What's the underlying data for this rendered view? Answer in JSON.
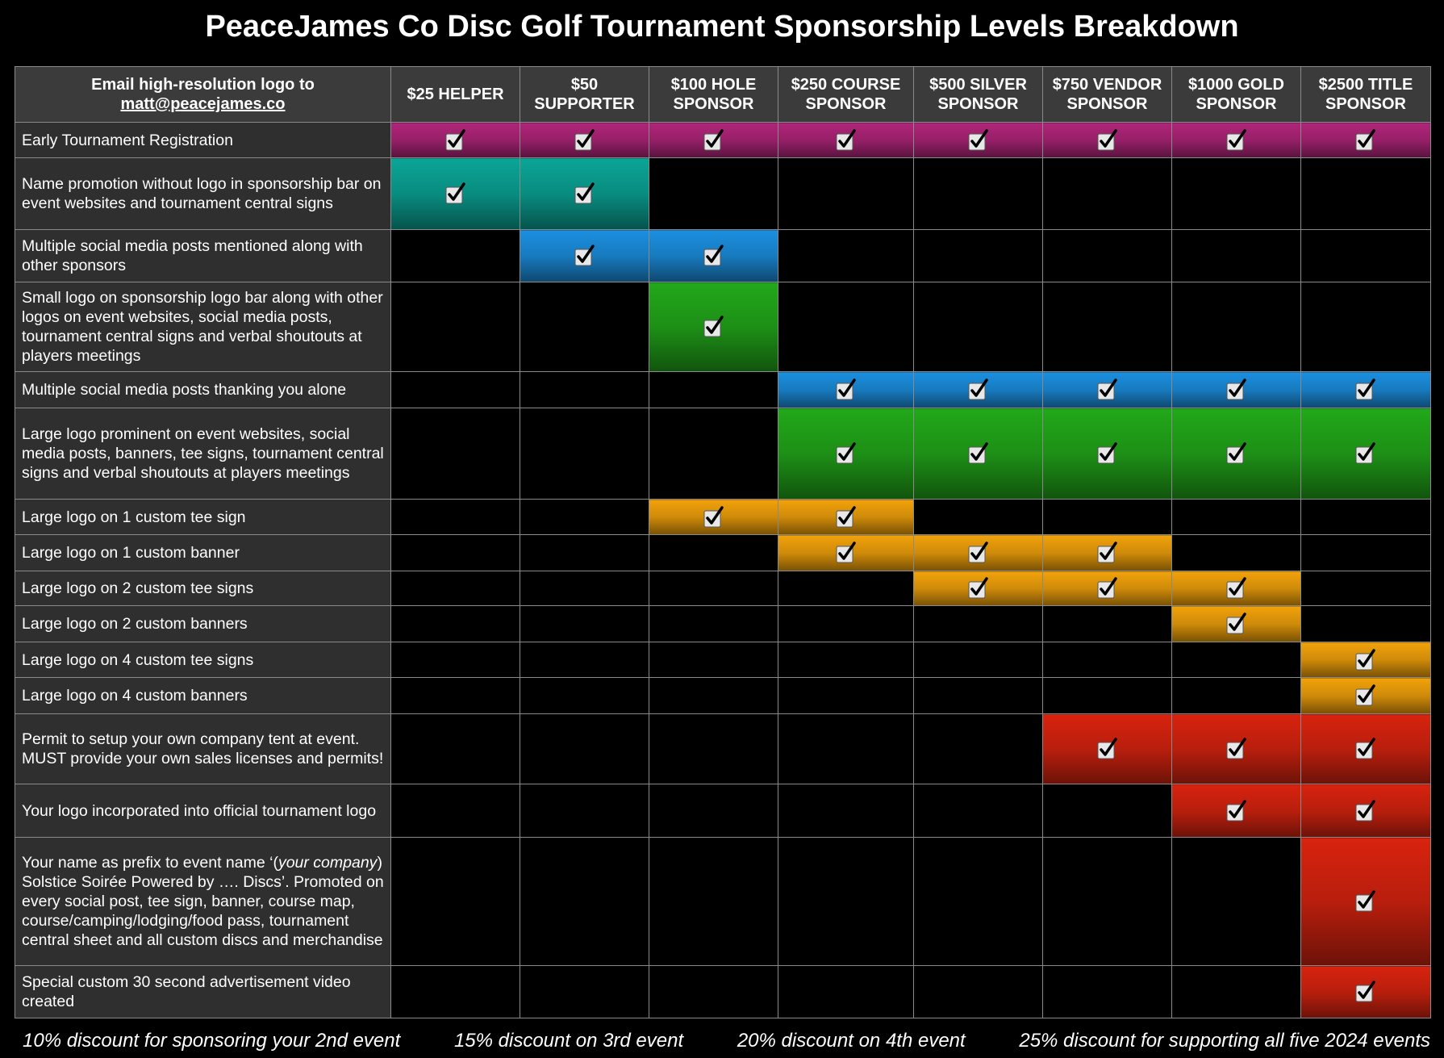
{
  "title": "PeaceJames Co Disc Golf Tournament Sponsorship Levels Breakdown",
  "header": {
    "note": "Email high-resolution logo to",
    "email": "matt@peacejames.co",
    "levels": [
      "$25 HELPER",
      "$50 SUPPORTER",
      "$100 HOLE SPONSOR",
      "$250 COURSE SPONSOR",
      "$500 SILVER SPONSOR",
      "$750 VENDOR SPONSOR",
      "$1000 GOLD SPONSOR",
      "$2500 TITLE SPONSOR"
    ]
  },
  "rows": [
    {
      "label": "Early Tournament Registration",
      "color": "#b0257a",
      "checks": [
        true,
        true,
        true,
        true,
        true,
        true,
        true,
        true
      ]
    },
    {
      "label": "Name promotion without logo in sponsorship bar on event websites and tournament central signs",
      "color": "#0aa596",
      "checks": [
        true,
        true,
        false,
        false,
        false,
        false,
        false,
        false
      ]
    },
    {
      "label": "Multiple social media posts mentioned along with other sponsors",
      "color": "#1b8fe0",
      "checks": [
        false,
        true,
        true,
        false,
        false,
        false,
        false,
        false
      ]
    },
    {
      "label": "Small logo on sponsorship logo bar along with other logos on event websites, social media posts, tournament central signs and verbal shoutouts at players meetings",
      "color": "#22a81a",
      "checks": [
        false,
        false,
        true,
        false,
        false,
        false,
        false,
        false
      ]
    },
    {
      "label": "Multiple social media posts thanking you alone",
      "color": "#1b8fe0",
      "checks": [
        false,
        false,
        false,
        true,
        true,
        true,
        true,
        true
      ]
    },
    {
      "label": "Large logo prominent on event websites, social media posts, banners, tee signs, tournament central signs and verbal shoutouts at players meetings",
      "color": "#22a81a",
      "checks": [
        false,
        false,
        false,
        true,
        true,
        true,
        true,
        true
      ]
    },
    {
      "label": "Large logo on 1 custom tee sign",
      "color": "#f2a20a",
      "checks": [
        false,
        false,
        true,
        true,
        false,
        false,
        false,
        false
      ]
    },
    {
      "label": "Large logo on 1 custom banner",
      "color": "#f2a20a",
      "checks": [
        false,
        false,
        false,
        true,
        true,
        true,
        false,
        false
      ]
    },
    {
      "label": "Large logo on 2 custom tee signs",
      "color": "#f2a20a",
      "checks": [
        false,
        false,
        false,
        false,
        true,
        true,
        true,
        false
      ]
    },
    {
      "label": "Large logo on 2 custom banners",
      "color": "#f2a20a",
      "checks": [
        false,
        false,
        false,
        false,
        false,
        false,
        true,
        false
      ]
    },
    {
      "label": "Large logo on 4 custom tee signs",
      "color": "#f2a20a",
      "checks": [
        false,
        false,
        false,
        false,
        false,
        false,
        false,
        true
      ]
    },
    {
      "label": "Large logo on 4 custom banners",
      "color": "#f2a20a",
      "checks": [
        false,
        false,
        false,
        false,
        false,
        false,
        false,
        true
      ]
    },
    {
      "label": "Permit to setup your own company tent at event. MUST provide your own sales licenses and permits!",
      "color": "#d8230f",
      "checks": [
        false,
        false,
        false,
        false,
        false,
        true,
        true,
        true
      ]
    },
    {
      "label": "Your logo incorporated into official tournament logo",
      "color": "#d8230f",
      "checks": [
        false,
        false,
        false,
        false,
        false,
        false,
        true,
        true
      ]
    },
    {
      "label": [
        "Your name as prefix to event name ‘(",
        "your company",
        ") Solstice Soirée Powered by …. Discs’. Promoted on every social post, tee sign, banner, course map, course/camping/lodging/food pass, tournament central sheet and all custom discs and merchandise"
      ],
      "color": "#d8230f",
      "checks": [
        false,
        false,
        false,
        false,
        false,
        false,
        false,
        true
      ]
    },
    {
      "label": "Special custom 30 second advertisement video created",
      "color": "#d8230f",
      "checks": [
        false,
        false,
        false,
        false,
        false,
        false,
        false,
        true
      ]
    }
  ],
  "footer": [
    "10% discount for sponsoring your 2nd event",
    "15% discount on 3rd event",
    "20% discount on 4th event",
    "25% discount for supporting all five 2024 events"
  ]
}
